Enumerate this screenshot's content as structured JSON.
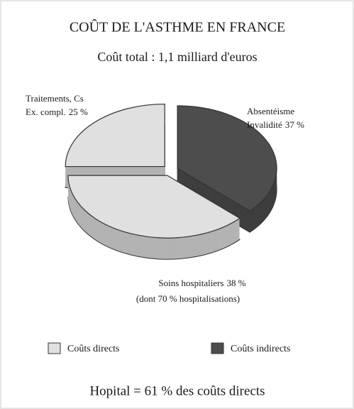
{
  "chart_data": {
    "type": "pie",
    "title": "COÛT DE L'ASTHME EN FRANCE",
    "subtitle": "Coût total : 1,1 milliard d'euros",
    "categories": [
      [
        "Absentéisme",
        "Invalidité"
      ],
      [
        "Soins hospitaliers"
      ],
      [
        "Traitements, Cs",
        "Ex. compl."
      ]
    ],
    "values": [
      37,
      38,
      25
    ],
    "value_labels": [
      "37 %",
      "38 %",
      "25 %"
    ],
    "colors": [
      "#4d4d4d",
      "#e0e0e0",
      "#e0e0e0"
    ],
    "annotation": "(dont 70 % hospitalisations)",
    "legend": [
      {
        "name": "Coûts directs",
        "color": "#e0e0e0"
      },
      {
        "name": "Coûts indirects",
        "color": "#4d4d4d"
      }
    ],
    "footer": "Hopital = 61 % des coûts directs"
  }
}
